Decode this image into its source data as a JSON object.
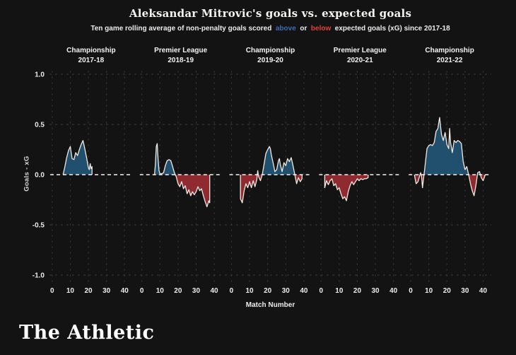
{
  "title": "Aleksandar Mitrovic's goals vs. expected goals",
  "subtitle": {
    "part1": "Ten game rolling average of non-penalty goals scored  ",
    "above": "above",
    "mid": "  or  ",
    "below": "below",
    "part2": "  expected goals (xG) since 2017-18"
  },
  "logo": "The Athletic",
  "colors": {
    "background": "#131313",
    "blue_fill": "#21506f",
    "red_fill": "#8e2a30",
    "line": "#f3e9e0",
    "above_text": "#3e6cb3",
    "below_text": "#df4238",
    "grid_h": "#3e3e3e",
    "grid_v": "#343434",
    "zero_line": "#f7f4ef",
    "tick_text": "#ededed",
    "header_text": "#f2f2f2"
  },
  "chart_data": {
    "type": "area",
    "title": "Aleksandar Mitrovic's goals vs. expected goals",
    "subtitle": "Ten game rolling average of non-penalty goals scored above or below expected goals (xG) since 2017-18",
    "xlabel": "Match Number",
    "ylabel": "Goals - xG",
    "ylim": [
      -1.0,
      1.0
    ],
    "y_ticks": [
      1.0,
      0.5,
      0.0,
      -0.5,
      -1.0
    ],
    "x_ticks": [
      0,
      10,
      20,
      30,
      40
    ],
    "grid": true,
    "zero_line_dashed": true,
    "panels": [
      {
        "competition": "Championship",
        "season": "2017-18",
        "points": [
          [
            6,
            0
          ],
          [
            7,
            0.08
          ],
          [
            8,
            0.17
          ],
          [
            9,
            0.24
          ],
          [
            10,
            0.28
          ],
          [
            10.5,
            0.22
          ],
          [
            11,
            0.16
          ],
          [
            12,
            0.15
          ],
          [
            13,
            0.22
          ],
          [
            14,
            0.19
          ],
          [
            15,
            0.25
          ],
          [
            16,
            0.3
          ],
          [
            17,
            0.34
          ],
          [
            17.5,
            0.3
          ],
          [
            18,
            0.26
          ],
          [
            19,
            0.17
          ],
          [
            20,
            0.07
          ],
          [
            20.5,
            0.05
          ],
          [
            21,
            0.11
          ],
          [
            21.5,
            0.06
          ],
          [
            22,
            0.08
          ]
        ]
      },
      {
        "competition": "Premier League",
        "season": "2018-19",
        "points": [
          [
            7,
            0
          ],
          [
            7.5,
            0.1
          ],
          [
            8,
            0.28
          ],
          [
            8.5,
            0.31
          ],
          [
            9,
            0.15
          ],
          [
            9.5,
            0.04
          ],
          [
            10,
            0.01
          ],
          [
            11,
            0.01
          ],
          [
            12,
            0.02
          ],
          [
            13,
            0.09
          ],
          [
            14,
            0.14
          ],
          [
            15,
            0.15
          ],
          [
            16,
            0.14
          ],
          [
            17,
            0.08
          ],
          [
            18,
            0.02
          ],
          [
            19,
            -0.02
          ],
          [
            20,
            -0.09
          ],
          [
            21,
            -0.12
          ],
          [
            22,
            -0.07
          ],
          [
            23,
            -0.14
          ],
          [
            24,
            -0.11
          ],
          [
            25,
            -0.19
          ],
          [
            26,
            -0.15
          ],
          [
            27,
            -0.21
          ],
          [
            28,
            -0.17
          ],
          [
            29,
            -0.2
          ],
          [
            30,
            -0.17
          ],
          [
            31,
            -0.12
          ],
          [
            32,
            -0.16
          ],
          [
            33,
            -0.14
          ],
          [
            34,
            -0.21
          ],
          [
            35,
            -0.27
          ],
          [
            36,
            -0.32
          ],
          [
            37,
            -0.26
          ],
          [
            37.5,
            -0.28
          ]
        ]
      },
      {
        "competition": "Championship",
        "season": "2019-20",
        "points": [
          [
            5,
            -0.24
          ],
          [
            6,
            -0.28
          ],
          [
            7,
            -0.16
          ],
          [
            8,
            -0.09
          ],
          [
            9,
            -0.13
          ],
          [
            10,
            -0.07
          ],
          [
            11,
            -0.13
          ],
          [
            12,
            -0.06
          ],
          [
            13,
            -0.12
          ],
          [
            14,
            -0.05
          ],
          [
            14.5,
            0.04
          ],
          [
            15,
            -0.02
          ],
          [
            16,
            -0.06
          ],
          [
            17,
            0
          ],
          [
            18,
            0.1
          ],
          [
            19,
            0.21
          ],
          [
            20,
            0.25
          ],
          [
            21,
            0.28
          ],
          [
            21.5,
            0.26
          ],
          [
            22,
            0.2
          ],
          [
            23,
            0.12
          ],
          [
            24,
            0.03
          ],
          [
            25,
            0.05
          ],
          [
            26,
            0.14
          ],
          [
            26.5,
            0.16
          ],
          [
            27,
            0.1
          ],
          [
            28,
            0.03
          ],
          [
            29,
            0.12
          ],
          [
            30,
            0.09
          ],
          [
            31,
            0.16
          ],
          [
            32,
            0.13
          ],
          [
            33,
            0.17
          ],
          [
            34,
            0.09
          ],
          [
            35,
            0
          ],
          [
            36,
            -0.09
          ],
          [
            37,
            -0.03
          ],
          [
            38,
            -0.07
          ],
          [
            39,
            -0.04
          ]
        ]
      },
      {
        "competition": "Premier League",
        "season": "2020-21",
        "points": [
          [
            2,
            -0.13
          ],
          [
            3,
            -0.06
          ],
          [
            4,
            -0.1
          ],
          [
            5,
            -0.06
          ],
          [
            6,
            -0.04
          ],
          [
            7,
            -0.11
          ],
          [
            8,
            -0.09
          ],
          [
            9,
            -0.15
          ],
          [
            10,
            -0.13
          ],
          [
            11,
            -0.19
          ],
          [
            12,
            -0.24
          ],
          [
            13,
            -0.22
          ],
          [
            14,
            -0.26
          ],
          [
            15,
            -0.17
          ],
          [
            16,
            -0.11
          ],
          [
            17,
            -0.07
          ],
          [
            18,
            -0.1
          ],
          [
            19,
            -0.07
          ],
          [
            20,
            -0.04
          ],
          [
            21,
            -0.06
          ],
          [
            22,
            -0.04
          ],
          [
            23,
            -0.05
          ],
          [
            24,
            -0.04
          ],
          [
            25,
            -0.04
          ],
          [
            26,
            -0.03
          ]
        ]
      },
      {
        "competition": "Championship",
        "season": "2021-22",
        "points": [
          [
            2,
            0
          ],
          [
            3,
            -0.09
          ],
          [
            4,
            -0.07
          ],
          [
            5,
            -0.01
          ],
          [
            5.5,
            0.02
          ],
          [
            6,
            -0.02
          ],
          [
            6.5,
            -0.13
          ],
          [
            7,
            -0.05
          ],
          [
            7.5,
            0.02
          ],
          [
            8,
            0.1
          ],
          [
            9,
            0.26
          ],
          [
            10,
            0.29
          ],
          [
            11,
            0.3
          ],
          [
            12,
            0.29
          ],
          [
            13,
            0.32
          ],
          [
            14,
            0.43
          ],
          [
            15,
            0.46
          ],
          [
            15.5,
            0.52
          ],
          [
            16,
            0.57
          ],
          [
            16.5,
            0.48
          ],
          [
            17,
            0.4
          ],
          [
            18,
            0.34
          ],
          [
            19,
            0.42
          ],
          [
            19.5,
            0.36
          ],
          [
            20,
            0.3
          ],
          [
            21,
            0.26
          ],
          [
            21.5,
            0.46
          ],
          [
            22,
            0.32
          ],
          [
            23,
            0.22
          ],
          [
            24,
            0.34
          ],
          [
            25,
            0.32
          ],
          [
            26,
            0.34
          ],
          [
            27,
            0.33
          ],
          [
            28,
            0.31
          ],
          [
            29,
            0.13
          ],
          [
            30,
            0.05
          ],
          [
            31,
            0.08
          ],
          [
            32,
            0
          ],
          [
            33,
            -0.09
          ],
          [
            34,
            -0.16
          ],
          [
            35,
            -0.21
          ],
          [
            36,
            -0.11
          ],
          [
            37,
            0.02
          ],
          [
            38,
            0.03
          ],
          [
            39,
            -0.03
          ],
          [
            40,
            -0.06
          ],
          [
            41,
            -0.01
          ]
        ]
      }
    ]
  }
}
